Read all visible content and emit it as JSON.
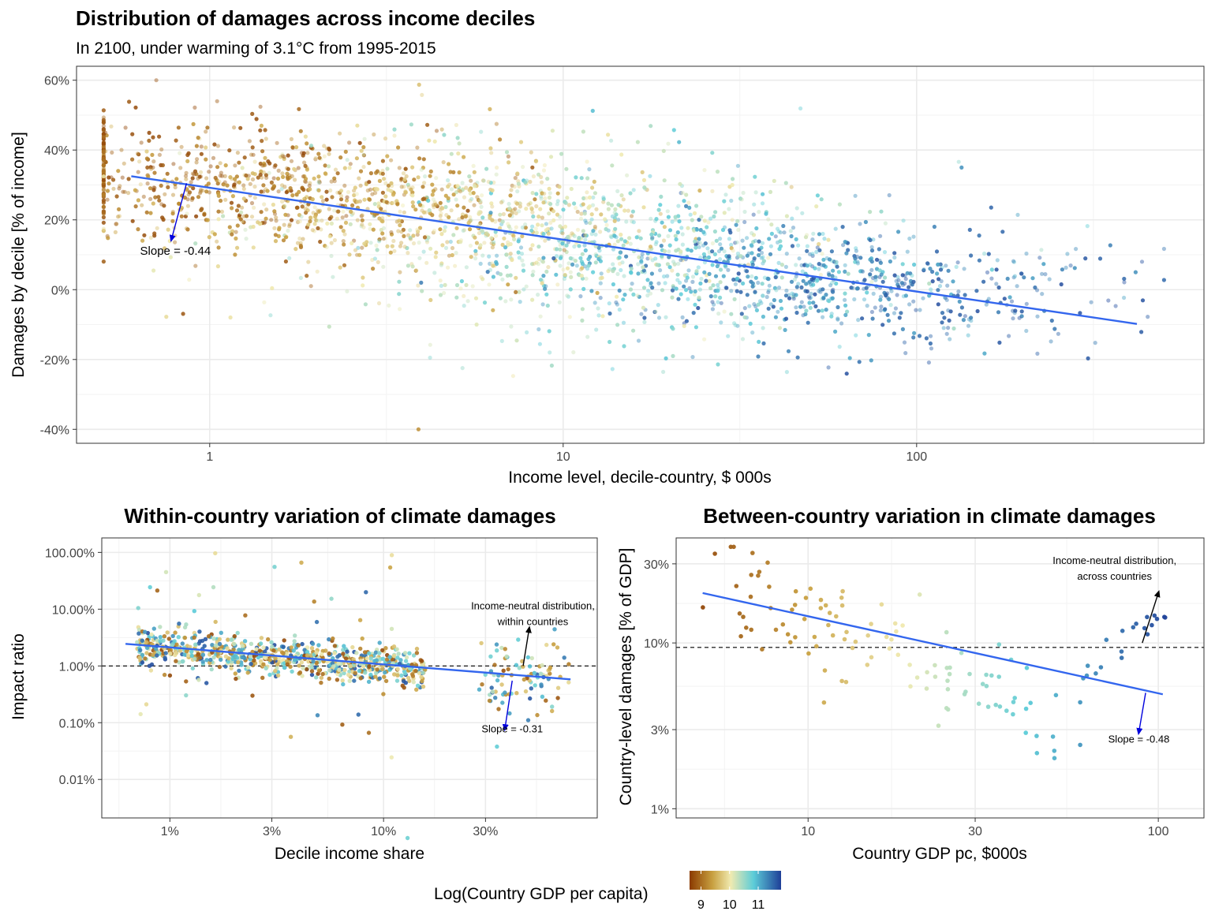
{
  "figure": {
    "title": "Distribution of damages across income deciles",
    "subtitle": "In 2100, under warming of 3.1°C from 1995-2015"
  },
  "colors": {
    "low": "#8b3a00",
    "mid_low": "#c8a040",
    "mid": "#f0eab0",
    "mid_high": "#5cccd8",
    "high": "#1f4fa8",
    "fit_line": "#3366ee",
    "arrow_blue": "#0000dd",
    "arrow_black": "#000000",
    "grid": "#ebebeb"
  },
  "legend": {
    "title": "Log(Country GDP per capita)",
    "ticks": [
      "9",
      "10",
      "11"
    ],
    "range": [
      8.6,
      11.8
    ],
    "tick_values": [
      9,
      10,
      11
    ]
  },
  "chart_data": [
    {
      "id": "top",
      "type": "scatter",
      "title": "",
      "xlabel": "Income level, decile-country, $ 000s",
      "ylabel": "Damages by decile [% of income]",
      "xscale": "log",
      "xlim": [
        0.42,
        650
      ],
      "ylim": [
        -44,
        64
      ],
      "xticks": [
        1,
        10,
        100
      ],
      "xtick_labels": [
        "1",
        "10",
        "100"
      ],
      "yticks": [
        60,
        40,
        20,
        0,
        -20,
        -40
      ],
      "ytick_labels": [
        "60%",
        "40%",
        "20%",
        "0%",
        "-20%",
        "-40%"
      ],
      "fit_line": {
        "x": [
          0.6,
          420
        ],
        "y": [
          32.5,
          -9.8
        ]
      },
      "annotations": [
        {
          "text": "Slope = -0.44",
          "x": 0.8,
          "y": 10,
          "arrow_from": [
            0.86,
            30.5
          ],
          "arrow_to": [
            0.78,
            14.5
          ],
          "arrow_color": "blue"
        }
      ],
      "points_note": "Dense cloud of decile-country points colored by log GDP per capita; points generated from the trend below.",
      "point_trend": {
        "n": 2600,
        "x_log_center": 1.05,
        "x_log_sd": 0.55
      }
    },
    {
      "id": "bottom-left",
      "type": "scatter",
      "title": "Within-country variation of climate damages",
      "xlabel": "Decile income share",
      "ylabel": "Impact ratio",
      "xscale": "log",
      "yscale": "log",
      "xlim": [
        0.0048,
        1.0
      ],
      "ylim": [
        0.0021,
        180
      ],
      "xticks": [
        0.01,
        0.03,
        0.1,
        0.3
      ],
      "xtick_labels": [
        "1%",
        "3%",
        "10%",
        "30%"
      ],
      "yticks": [
        100,
        10,
        1,
        0.1,
        0.01
      ],
      "ytick_labels": [
        "100.00%",
        "10.00%",
        "1.00%",
        "0.10%",
        "0.01%"
      ],
      "reference_line": 1.0,
      "fit_line": {
        "x": [
          0.0062,
          0.75
        ],
        "y": [
          2.45,
          0.58
        ]
      },
      "annotations": [
        {
          "text_lines": [
            "Income-neutral distribution,",
            "within countries"
          ],
          "x": 0.5,
          "y": 10,
          "arrow_from": [
            0.45,
            1.0
          ],
          "arrow_to": [
            0.48,
            4.5
          ],
          "arrow_color": "black"
        },
        {
          "text_lines": [
            "Slope = -0.31"
          ],
          "x": 0.4,
          "y": 0.068,
          "arrow_from": [
            0.4,
            0.55
          ],
          "arrow_to": [
            0.37,
            0.08
          ],
          "arrow_color": "blue"
        }
      ],
      "point_trend": {
        "n": 900
      }
    },
    {
      "id": "bottom-right",
      "type": "scatter",
      "title": "Between-country variation in climate damages",
      "xlabel": "Country GDP pc, $000s",
      "ylabel": "Country-level damages [% of GDP]",
      "xscale": "log",
      "yscale": "log",
      "xlim": [
        4.2,
        135
      ],
      "ylim": [
        0.0088,
        0.43
      ],
      "xticks": [
        10,
        30,
        100
      ],
      "xtick_labels": [
        "10",
        "30",
        "100"
      ],
      "yticks": [
        0.3,
        0.1,
        0.03,
        0.01
      ],
      "ytick_labels": [
        "30%",
        "10%",
        "3%",
        "1%"
      ],
      "reference_line": 0.094,
      "fit_line": {
        "x": [
          5.0,
          103
        ],
        "y": [
          0.2,
          0.049
        ]
      },
      "annotations": [
        {
          "text_lines": [
            "Income-neutral distribution,",
            "across countries"
          ],
          "x": 75,
          "y": 0.3,
          "arrow_from": [
            90,
            0.1
          ],
          "arrow_to": [
            100,
            0.2
          ],
          "arrow_color": "black"
        },
        {
          "text_lines": [
            "Slope = -0.48"
          ],
          "x": 88,
          "y": 0.025,
          "arrow_from": [
            92,
            0.05
          ],
          "arrow_to": [
            88,
            0.029
          ],
          "arrow_color": "blue"
        }
      ],
      "point_trend": {
        "n": 130
      }
    }
  ]
}
